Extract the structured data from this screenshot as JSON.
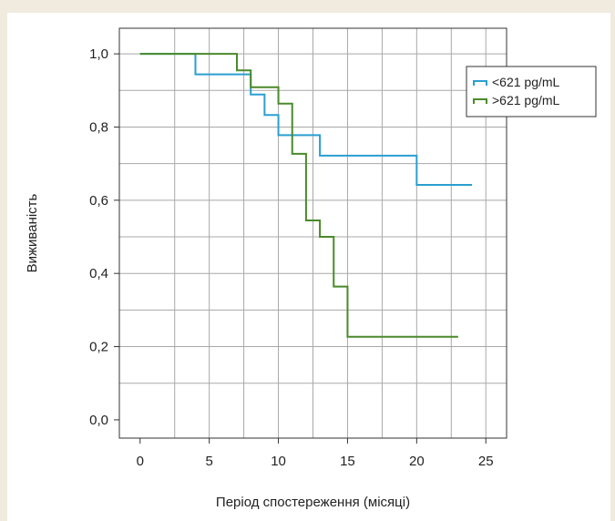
{
  "chart_data": {
    "type": "line",
    "step": true,
    "title": "",
    "xlabel": "Період спостереження (місяці)",
    "ylabel": "Виживаність",
    "xlim": [
      -1.5,
      26.5
    ],
    "ylim": [
      -0.05,
      1.07
    ],
    "xticks": [
      0,
      5,
      10,
      15,
      20,
      25
    ],
    "xtick_labels": [
      "0",
      "5",
      "10",
      "15",
      "20",
      "25"
    ],
    "yticks": [
      0.0,
      0.2,
      0.4,
      0.6,
      0.8,
      1.0
    ],
    "ytick_labels": [
      "0,0",
      "0,2",
      "0,4",
      "0,6",
      "0,8",
      "1,0"
    ],
    "grid": true,
    "legend_position": "top-right",
    "series": [
      {
        "name": "<621 pg/mL",
        "color": "#2a9fd0",
        "x": [
          0,
          4,
          8,
          9,
          10,
          13,
          20,
          24
        ],
        "y": [
          1.0,
          0.944,
          0.889,
          0.833,
          0.778,
          0.722,
          0.642,
          0.642
        ]
      },
      {
        "name": ">621 pg/mL",
        "color": "#4a8a2a",
        "x": [
          0,
          7,
          8,
          10,
          11,
          12,
          13,
          14,
          15,
          23
        ],
        "y": [
          1.0,
          0.955,
          0.909,
          0.864,
          0.727,
          0.545,
          0.5,
          0.364,
          0.227,
          0.227
        ]
      }
    ]
  }
}
